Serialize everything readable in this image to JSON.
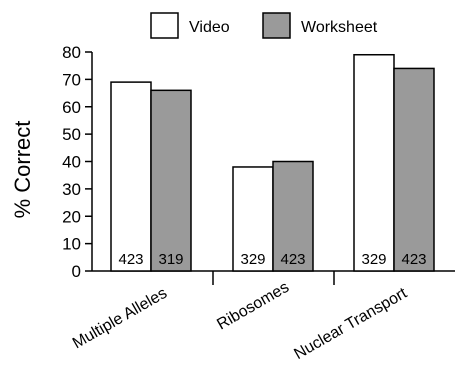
{
  "chart_data": {
    "type": "bar",
    "title": "",
    "xlabel": "",
    "ylabel": "% Correct",
    "ylim": [
      0,
      80
    ],
    "yticks": [
      0,
      10,
      20,
      30,
      40,
      50,
      60,
      70,
      80
    ],
    "categories": [
      "Multiple Alleles",
      "Ribosomes",
      "Nuclear Transport"
    ],
    "series": [
      {
        "name": "Video",
        "color": "#ffffff",
        "values": [
          69,
          38,
          79
        ],
        "n_labels": [
          "423",
          "329",
          "329"
        ]
      },
      {
        "name": "Worksheet",
        "color": "#9a9a9a",
        "values": [
          66,
          40,
          74
        ],
        "n_labels": [
          "319",
          "423",
          "423"
        ]
      }
    ],
    "legend_position": "top",
    "grid": false
  }
}
